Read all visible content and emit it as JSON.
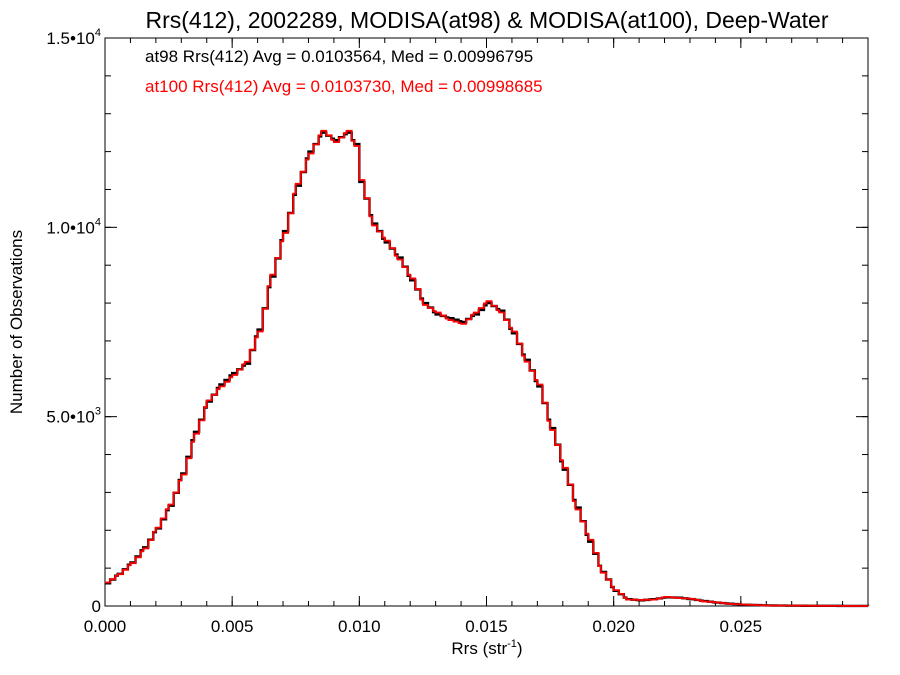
{
  "chart_data": {
    "type": "line",
    "title": "Rrs(412), 2002289, MODISA(at98) & MODISA(at100), Deep-Water",
    "xlabel": "Rrs (str",
    "xlabel_sup": "-1",
    "xlabel_close": ")",
    "ylabel": "Number of Observations",
    "xlim": [
      0.0,
      0.03
    ],
    "ylim": [
      0,
      15000
    ],
    "x_ticks": [
      0.0,
      0.005,
      0.01,
      0.015,
      0.02,
      0.025
    ],
    "x_tick_labels": [
      "0.000",
      "0.005",
      "0.010",
      "0.015",
      "0.020",
      "0.025"
    ],
    "y_ticks": [
      0,
      5000,
      10000,
      15000
    ],
    "y_tick_labels": [
      {
        "base": "0",
        "exp": ""
      },
      {
        "base": "5.0•10",
        "exp": "3"
      },
      {
        "base": "1.0•10",
        "exp": "4"
      },
      {
        "base": "1.5•10",
        "exp": "4"
      }
    ],
    "grid": false,
    "annotations": [
      {
        "text": "at98 Rrs(412) Avg = 0.0103564, Med = 0.00996795",
        "color": "#000000"
      },
      {
        "text": "at100 Rrs(412) Avg = 0.0103730, Med = 0.00998685",
        "color": "#ff0000"
      }
    ],
    "series": [
      {
        "color": "#000000",
        "x": [
          0.0,
          0.0005,
          0.001,
          0.0015,
          0.002,
          0.0025,
          0.003,
          0.0035,
          0.004,
          0.0045,
          0.005,
          0.0055,
          0.006,
          0.0065,
          0.007,
          0.0075,
          0.008,
          0.0085,
          0.009,
          0.0095,
          0.0098,
          0.01,
          0.0105,
          0.011,
          0.0115,
          0.012,
          0.0125,
          0.013,
          0.0135,
          0.014,
          0.0145,
          0.015,
          0.0155,
          0.016,
          0.0165,
          0.017,
          0.0175,
          0.018,
          0.0185,
          0.019,
          0.0195,
          0.02,
          0.0205,
          0.021,
          0.0215,
          0.022,
          0.0225,
          0.023,
          0.0235,
          0.024,
          0.0245,
          0.025,
          0.026,
          0.027,
          0.028,
          0.029,
          0.03
        ],
        "y": [
          600,
          850,
          1150,
          1550,
          2050,
          2650,
          3500,
          4600,
          5400,
          5850,
          6150,
          6400,
          7300,
          8700,
          9900,
          11100,
          12000,
          12500,
          12300,
          12500,
          12200,
          11200,
          10100,
          9600,
          9200,
          8600,
          8000,
          7700,
          7600,
          7500,
          7700,
          8000,
          7800,
          7200,
          6500,
          5800,
          4700,
          3600,
          2600,
          1700,
          900,
          400,
          180,
          150,
          180,
          230,
          220,
          180,
          130,
          90,
          60,
          35,
          15,
          8,
          5,
          3,
          0
        ]
      },
      {
        "color": "#ff0000",
        "x": [
          0.0,
          0.0005,
          0.001,
          0.0015,
          0.002,
          0.0025,
          0.003,
          0.0035,
          0.004,
          0.0045,
          0.005,
          0.0055,
          0.006,
          0.0065,
          0.007,
          0.0075,
          0.008,
          0.0085,
          0.009,
          0.0095,
          0.0098,
          0.01,
          0.0105,
          0.011,
          0.0115,
          0.012,
          0.0125,
          0.013,
          0.0135,
          0.014,
          0.0145,
          0.015,
          0.0155,
          0.016,
          0.0165,
          0.017,
          0.0175,
          0.018,
          0.0185,
          0.019,
          0.0195,
          0.02,
          0.0205,
          0.021,
          0.0215,
          0.022,
          0.0225,
          0.023,
          0.0235,
          0.024,
          0.0245,
          0.025,
          0.026,
          0.027,
          0.028,
          0.029,
          0.03
        ],
        "y": [
          620,
          840,
          1130,
          1520,
          2070,
          2680,
          3470,
          4550,
          5430,
          5800,
          6100,
          6450,
          7250,
          8750,
          9850,
          11150,
          11950,
          12550,
          12250,
          12550,
          12150,
          11250,
          10050,
          9650,
          9150,
          8650,
          7950,
          7750,
          7550,
          7450,
          7750,
          8050,
          7750,
          7250,
          6450,
          5850,
          4650,
          3650,
          2550,
          1750,
          880,
          420,
          170,
          160,
          170,
          240,
          210,
          190,
          120,
          95,
          55,
          40,
          12,
          10,
          4,
          2,
          0
        ]
      }
    ]
  }
}
